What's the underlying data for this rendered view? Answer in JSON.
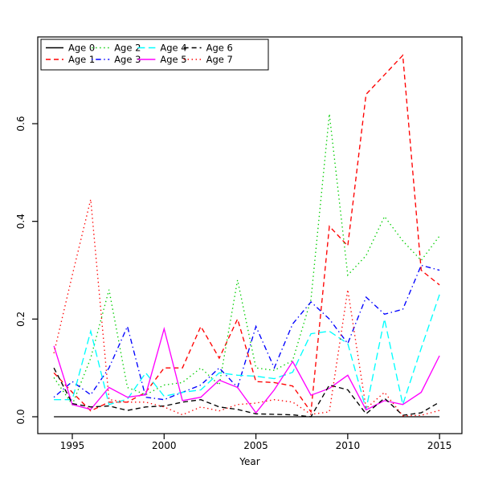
{
  "chart_data": {
    "type": "line",
    "title": "",
    "xlabel": "Year",
    "ylabel": "",
    "x": [
      1994,
      1995,
      1996,
      1997,
      1998,
      1999,
      2000,
      2001,
      2002,
      2003,
      2004,
      2005,
      2006,
      2007,
      2008,
      2009,
      2010,
      2011,
      2012,
      2013,
      2014,
      2015
    ],
    "xlim": [
      1993.2,
      2016.3
    ],
    "ylim": [
      -0.03,
      0.78
    ],
    "x_tick_labels": [
      "1995",
      "2000",
      "2005",
      "2010",
      "2015"
    ],
    "x_ticks": [
      1995,
      2000,
      2005,
      2010,
      2015
    ],
    "y_tick_labels": [
      "0.0",
      "0.2",
      "0.4",
      "0.6"
    ],
    "y_ticks": [
      0.0,
      0.2,
      0.4,
      0.6
    ],
    "grid": false,
    "legend_position": "top-left-inside",
    "legend_columns": 4,
    "series": [
      {
        "name": "Age 0",
        "color": "#000000",
        "linestyle": "solid",
        "values": [
          0,
          0,
          0,
          0,
          0,
          0,
          0,
          0,
          0,
          0,
          0,
          0,
          0,
          0,
          0,
          0,
          0,
          0,
          0,
          0,
          0,
          0
        ]
      },
      {
        "name": "Age 1",
        "color": "#FF0000",
        "linestyle": "dashed",
        "values": [
          0.09,
          0.05,
          0.012,
          0.03,
          0.03,
          0.05,
          0.1,
          0.1,
          0.185,
          0.12,
          0.2,
          0.072,
          0.07,
          0.063,
          0.01,
          0.39,
          0.35,
          0.66,
          0.7,
          0.74,
          0.3,
          0.27
        ]
      },
      {
        "name": "Age 2",
        "color": "#00CD00",
        "linestyle": "dotted",
        "values": [
          0.08,
          0.025,
          0.12,
          0.26,
          0.06,
          0.045,
          0.065,
          0.07,
          0.1,
          0.065,
          0.28,
          0.1,
          0.095,
          0.115,
          0.24,
          0.62,
          0.29,
          0.33,
          0.41,
          0.36,
          0.32,
          0.37
        ]
      },
      {
        "name": "Age 3",
        "color": "#0000FF",
        "linestyle": "dotdash",
        "values": [
          0.04,
          0.072,
          0.045,
          0.1,
          0.185,
          0.04,
          0.035,
          0.05,
          0.065,
          0.1,
          0.06,
          0.185,
          0.1,
          0.19,
          0.235,
          0.2,
          0.15,
          0.245,
          0.21,
          0.22,
          0.31,
          0.3
        ]
      },
      {
        "name": "Age 4",
        "color": "#00FFFF",
        "linestyle": "longdash",
        "values": [
          0.035,
          0.035,
          0.175,
          0.025,
          0.036,
          0.09,
          0.042,
          0.05,
          0.055,
          0.09,
          0.085,
          0.083,
          0.078,
          0.091,
          0.17,
          0.175,
          0.15,
          0.015,
          0.2,
          0.025,
          0.14,
          0.25
        ]
      },
      {
        "name": "Age 5",
        "color": "#FF00FF",
        "linestyle": "solid",
        "values": [
          0.145,
          0.025,
          0.015,
          0.06,
          0.04,
          0.045,
          0.18,
          0.033,
          0.04,
          0.075,
          0.06,
          0.008,
          0.055,
          0.113,
          0.044,
          0.058,
          0.085,
          0.014,
          0.033,
          0.025,
          0.05,
          0.125
        ]
      },
      {
        "name": "Age 6",
        "color": "#000000",
        "linestyle": "dashed",
        "values": [
          0.1,
          0.027,
          0.02,
          0.022,
          0.013,
          0.02,
          0.022,
          0.03,
          0.035,
          0.02,
          0.015,
          0.006,
          0.005,
          0.004,
          0.0,
          0.065,
          0.055,
          0.006,
          0.038,
          0.003,
          0.008,
          0.03
        ]
      },
      {
        "name": "Age 7",
        "color": "#FF0000",
        "linestyle": "dotted",
        "values": [
          0.13,
          0.29,
          0.445,
          0.035,
          0.03,
          0.03,
          0.02,
          0.004,
          0.02,
          0.012,
          0.025,
          0.028,
          0.035,
          0.03,
          0.005,
          0.01,
          0.26,
          0.017,
          0.05,
          0.002,
          0.003,
          0.013
        ]
      }
    ]
  }
}
